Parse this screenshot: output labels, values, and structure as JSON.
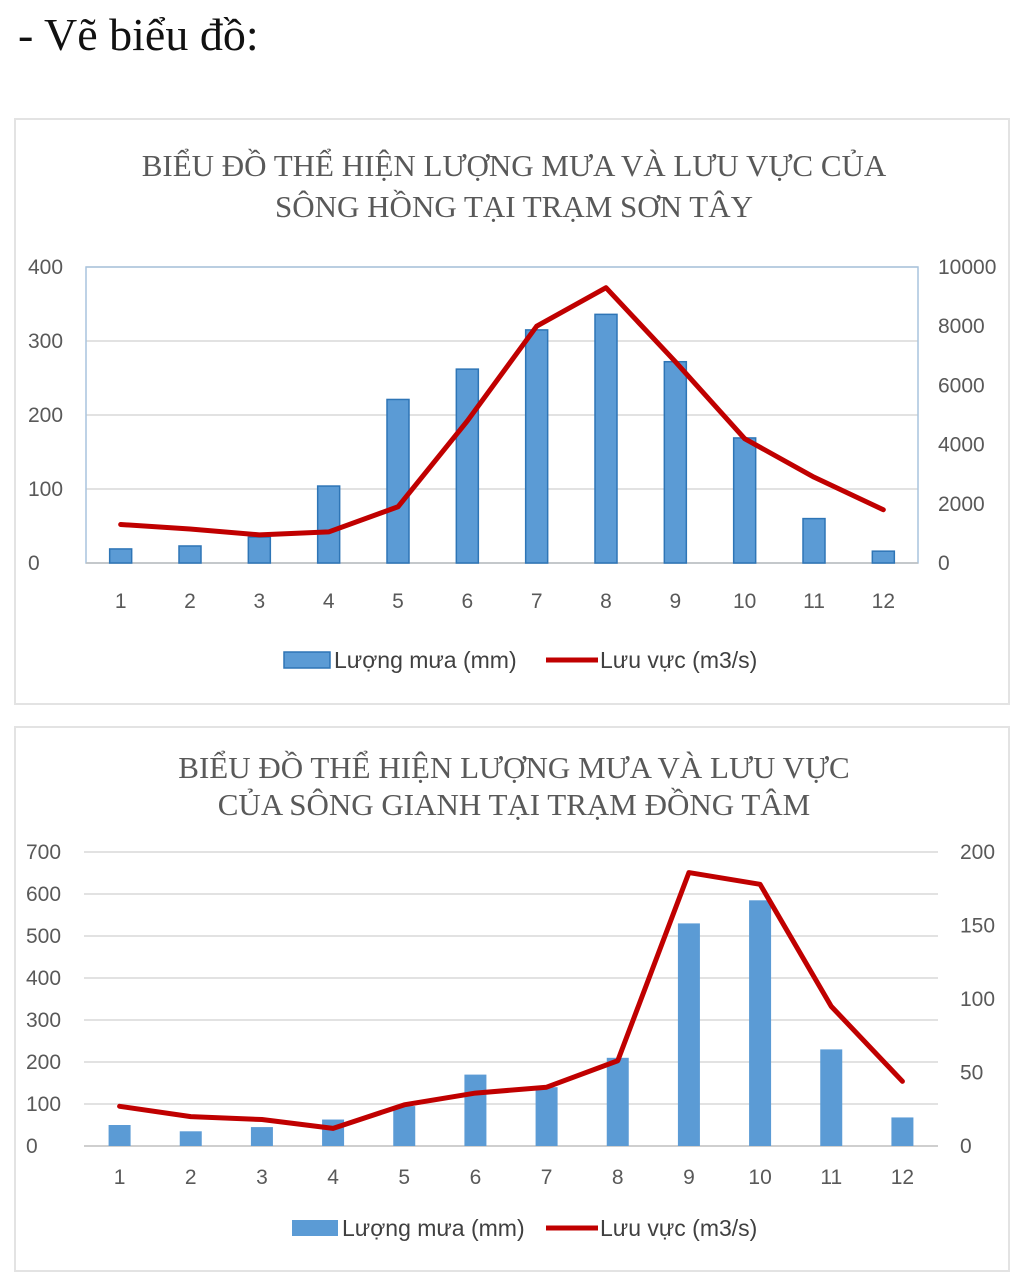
{
  "heading": "- Vẽ biểu đồ:",
  "colors": {
    "bar": "#5b9bd5",
    "bar_border": "#2e75b6",
    "line": "#c00000",
    "grid": "#d9d9d9",
    "text": "#595959"
  },
  "chart_data": [
    {
      "type": "bar+line",
      "title_lines": [
        "BIỂU ĐỒ THỂ HIỆN LƯỢNG MƯA VÀ LƯU VỰC CỦA",
        "SÔNG HỒNG TẠI TRẠM SƠN TÂY"
      ],
      "categories": [
        "1",
        "2",
        "3",
        "4",
        "5",
        "6",
        "7",
        "8",
        "9",
        "10",
        "11",
        "12"
      ],
      "series": [
        {
          "name": "Lượng mưa (mm)",
          "kind": "bar",
          "axis": "left",
          "values": [
            19,
            23,
            35,
            104,
            221,
            262,
            315,
            336,
            272,
            169,
            60,
            16
          ]
        },
        {
          "name": "Lưu vực (m3/s)",
          "kind": "line",
          "axis": "right",
          "values": [
            1300,
            1150,
            950,
            1050,
            1900,
            4800,
            8000,
            9300,
            6800,
            4200,
            2900,
            1800
          ]
        }
      ],
      "left_axis": {
        "min": 0,
        "max": 400,
        "ticks": [
          0,
          100,
          200,
          300,
          400
        ]
      },
      "right_axis": {
        "min": 0,
        "max": 10000,
        "ticks": [
          0,
          2000,
          4000,
          6000,
          8000,
          10000
        ]
      },
      "grid": true,
      "legend": "bottom"
    },
    {
      "type": "bar+line",
      "title_lines": [
        "BIỂU ĐỒ THỂ HIỆN LƯỢNG MƯA VÀ LƯU VỰC",
        "CỦA SÔNG GIANH TẠI TRẠM ĐỒNG TÂM"
      ],
      "categories": [
        "1",
        "2",
        "3",
        "4",
        "5",
        "6",
        "7",
        "8",
        "9",
        "10",
        "11",
        "12"
      ],
      "series": [
        {
          "name": "Lượng mưa (mm)",
          "kind": "bar",
          "axis": "left",
          "values": [
            50,
            35,
            45,
            63,
            95,
            170,
            140,
            210,
            530,
            585,
            230,
            68
          ]
        },
        {
          "name": "Lưu vực (m3/s)",
          "kind": "line",
          "axis": "right",
          "values": [
            27,
            20,
            18,
            12,
            28,
            36,
            40,
            58,
            186,
            178,
            95,
            44
          ]
        }
      ],
      "left_axis": {
        "min": 0,
        "max": 700,
        "ticks": [
          0,
          100,
          200,
          300,
          400,
          500,
          600,
          700
        ]
      },
      "right_axis": {
        "min": 0,
        "max": 200,
        "ticks": [
          0,
          50,
          100,
          150,
          200
        ]
      },
      "grid": true,
      "legend": "bottom"
    }
  ]
}
